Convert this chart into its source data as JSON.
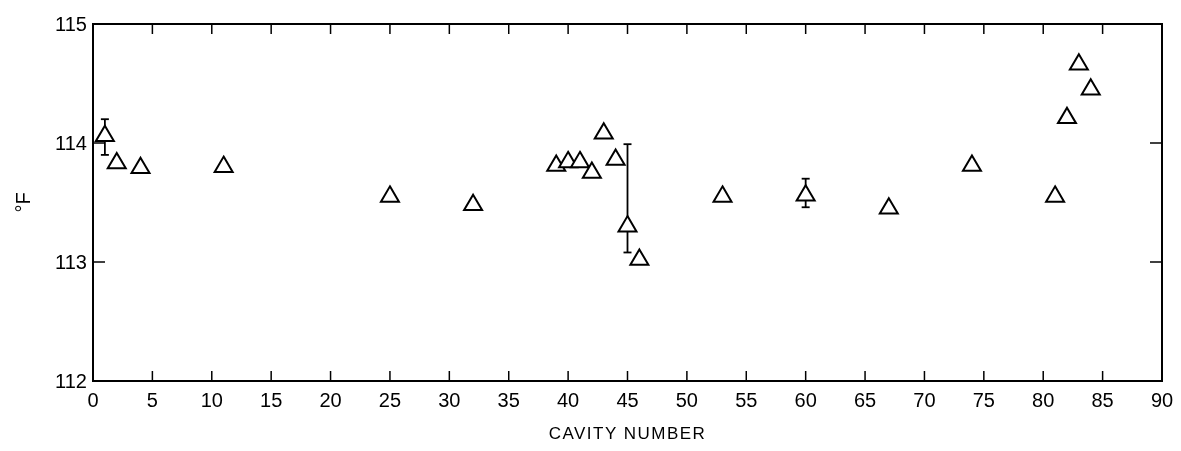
{
  "chart_data": {
    "type": "scatter",
    "xlabel": "CAVITY NUMBER",
    "ylabel": "°F",
    "x": [
      1,
      2,
      4,
      11,
      25,
      32,
      39,
      40,
      41,
      42,
      43,
      44,
      45,
      46,
      53,
      60,
      67,
      74,
      81,
      82,
      83,
      84
    ],
    "values": [
      114.07,
      113.84,
      113.8,
      113.81,
      113.56,
      113.49,
      113.82,
      113.85,
      113.85,
      113.76,
      114.09,
      113.87,
      113.31,
      113.03,
      113.56,
      113.57,
      113.46,
      113.82,
      113.56,
      114.22,
      114.67,
      114.46
    ],
    "errors": [
      [
        113.9,
        114.2
      ],
      null,
      null,
      null,
      null,
      null,
      null,
      null,
      null,
      null,
      null,
      null,
      [
        113.08,
        113.99
      ],
      null,
      null,
      [
        113.46,
        113.7
      ],
      null,
      null,
      null,
      null,
      null,
      null
    ],
    "color": "#000000",
    "marker": "triangle",
    "xlim": [
      0,
      90
    ],
    "xticks": [
      0,
      5,
      10,
      15,
      20,
      25,
      30,
      35,
      40,
      45,
      50,
      55,
      60,
      65,
      70,
      75,
      80,
      85,
      90
    ],
    "ylim": [
      112,
      115
    ],
    "yticks": [
      112,
      113,
      114,
      115
    ],
    "grid": false
  }
}
